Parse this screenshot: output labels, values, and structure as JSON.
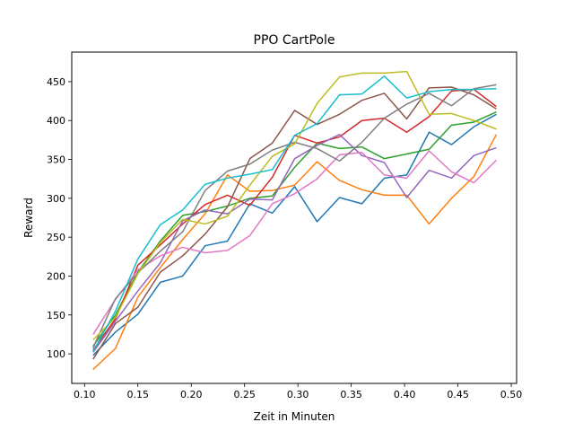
{
  "chart_data": {
    "type": "line",
    "title": "PPO CartPole",
    "xlabel": "Zeit in Minuten",
    "ylabel": "Reward",
    "xlim": [
      0.088,
      0.505
    ],
    "ylim": [
      62,
      488
    ],
    "xticks": [
      0.1,
      0.15,
      0.2,
      0.25,
      0.3,
      0.35,
      0.4,
      0.45,
      0.5
    ],
    "xtick_labels": [
      "0.10",
      "0.15",
      "0.20",
      "0.25",
      "0.30",
      "0.35",
      "0.40",
      "0.45",
      "0.50"
    ],
    "yticks": [
      100,
      150,
      200,
      250,
      300,
      350,
      400,
      450
    ],
    "ytick_labels": [
      "100",
      "150",
      "200",
      "250",
      "300",
      "350",
      "400",
      "450"
    ],
    "grid": false,
    "legend": "none",
    "x": [
      0.108,
      0.129,
      0.15,
      0.171,
      0.192,
      0.213,
      0.234,
      0.255,
      0.276,
      0.297,
      0.318,
      0.339,
      0.36,
      0.381,
      0.402,
      0.423,
      0.444,
      0.465,
      0.486
    ],
    "series": [
      {
        "color": "#1f77b4",
        "values": [
          98,
          128,
          151,
          192,
          200,
          239,
          245,
          293,
          281,
          315,
          270,
          301,
          293,
          326,
          330,
          385,
          369,
          392,
          408
        ]
      },
      {
        "color": "#ff7f0e",
        "values": [
          80,
          107,
          173,
          211,
          247,
          280,
          330,
          309,
          310,
          317,
          347,
          323,
          311,
          304,
          304,
          267,
          300,
          328,
          382
        ]
      },
      {
        "color": "#2ca02c",
        "values": [
          110,
          150,
          205,
          245,
          278,
          283,
          290,
          300,
          303,
          340,
          371,
          364,
          366,
          351,
          357,
          363,
          394,
          398,
          411
        ]
      },
      {
        "color": "#d62728",
        "values": [
          105,
          145,
          214,
          240,
          267,
          292,
          304,
          291,
          327,
          381,
          371,
          379,
          400,
          403,
          385,
          405,
          438,
          440,
          418
        ]
      },
      {
        "color": "#9467bd",
        "values": [
          102,
          142,
          181,
          217,
          271,
          285,
          280,
          299,
          298,
          351,
          368,
          382,
          355,
          346,
          301,
          336,
          326,
          355,
          365
        ]
      },
      {
        "color": "#8c564b",
        "values": [
          93,
          139,
          160,
          205,
          226,
          254,
          289,
          351,
          371,
          413,
          395,
          408,
          426,
          435,
          402,
          442,
          443,
          433,
          415
        ]
      },
      {
        "color": "#e377c2",
        "values": [
          125,
          170,
          208,
          226,
          237,
          230,
          233,
          252,
          293,
          306,
          325,
          356,
          359,
          330,
          326,
          361,
          334,
          320,
          349
        ]
      },
      {
        "color": "#7f7f7f",
        "values": [
          108,
          171,
          204,
          232,
          257,
          310,
          335,
          344,
          362,
          372,
          364,
          348,
          372,
          403,
          421,
          435,
          419,
          441,
          446
        ]
      },
      {
        "color": "#bcbd22",
        "values": [
          118,
          147,
          203,
          243,
          273,
          267,
          277,
          317,
          354,
          370,
          422,
          456,
          461,
          461,
          463,
          408,
          409,
          400,
          389
        ]
      },
      {
        "color": "#17becf",
        "values": [
          103,
          155,
          222,
          266,
          285,
          318,
          326,
          331,
          337,
          381,
          396,
          433,
          434,
          457,
          429,
          437,
          440,
          440,
          441
        ]
      }
    ]
  }
}
